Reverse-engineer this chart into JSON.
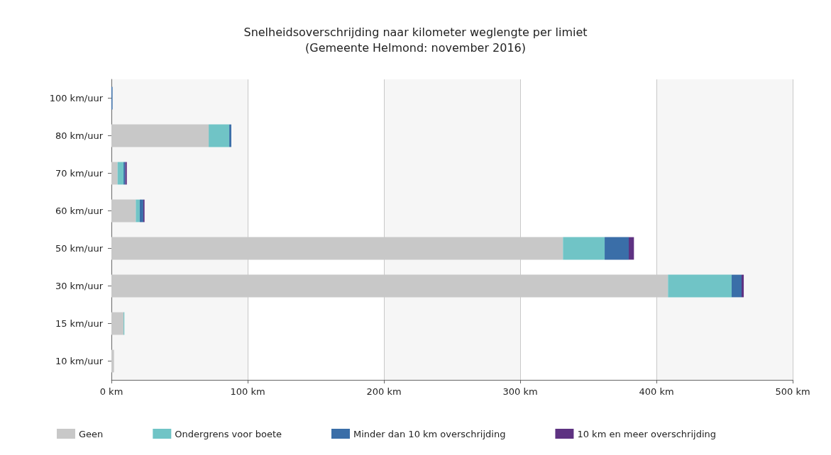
{
  "chart_data": {
    "type": "bar",
    "orientation": "horizontal",
    "stacked": true,
    "title": "Snelheidsoverschrijding naar kilometer weglengte per limiet",
    "subtitle": "(Gemeente Helmond: november 2016)",
    "categories": [
      "100 km/uur",
      "80 km/uur",
      "70 km/uur",
      "60 km/uur",
      "50 km/uur",
      "30 km/uur",
      "15 km/uur",
      "10 km/uur"
    ],
    "series": [
      {
        "name": "Geen",
        "color": "#c8c8c8",
        "values": [
          0,
          71.4,
          4.5,
          17.9,
          331.4,
          408.5,
          8.9,
          1.9
        ]
      },
      {
        "name": "Ondergrens voor boete",
        "color": "#70c4c6",
        "values": [
          0,
          15.1,
          4.4,
          2.9,
          30.6,
          46.7,
          0.6,
          0
        ]
      },
      {
        "name": "Minder dan 10 km overschrijding",
        "color": "#3a6ea8",
        "values": [
          0.8,
          1.5,
          1.3,
          2.6,
          17.7,
          7.3,
          0,
          0
        ]
      },
      {
        "name": "10 km en meer overschrijding",
        "color": "#5e3282",
        "values": [
          0,
          0,
          1.1,
          0.9,
          3.8,
          1.6,
          0,
          0
        ]
      }
    ],
    "xlim": [
      0,
      500
    ],
    "xticks": [
      {
        "value": 0,
        "label": "0 km"
      },
      {
        "value": 100,
        "label": "100 km"
      },
      {
        "value": 200,
        "label": "200 km"
      },
      {
        "value": 300,
        "label": "300 km"
      },
      {
        "value": 400,
        "label": "400 km"
      },
      {
        "value": 500,
        "label": "500 km"
      }
    ],
    "grid": "x",
    "legend": "bottom"
  }
}
